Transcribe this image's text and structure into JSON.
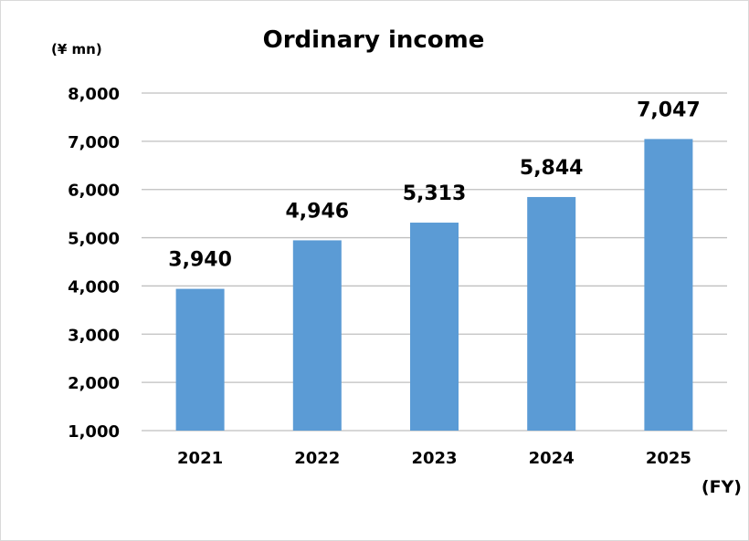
{
  "chart_data": {
    "type": "bar",
    "title": "Ordinary income",
    "unit_label": "(¥ mn)",
    "x_unit_label": "(FY)",
    "categories": [
      "2021",
      "2022",
      "2023",
      "2024",
      "2025"
    ],
    "values": [
      3940,
      4946,
      5313,
      5844,
      7047
    ],
    "value_labels": [
      "3,940",
      "4,946",
      "5,313",
      "5,844",
      "7,047"
    ],
    "ylim": [
      1000,
      8000
    ],
    "yticks": [
      1000,
      2000,
      3000,
      4000,
      5000,
      6000,
      7000,
      8000
    ],
    "ytick_labels": [
      "1,000",
      "2,000",
      "3,000",
      "4,000",
      "5,000",
      "6,000",
      "7,000",
      "8,000"
    ],
    "grid": true,
    "legend": "none",
    "colors": {
      "bar": "#5b9bd5",
      "grid": "#bfbfbf"
    }
  }
}
